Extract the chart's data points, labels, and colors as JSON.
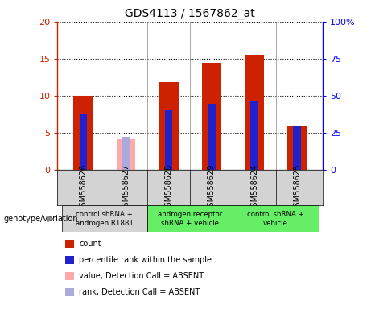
{
  "title": "GDS4113 / 1567862_at",
  "samples": [
    "GSM558626",
    "GSM558627",
    "GSM558628",
    "GSM558629",
    "GSM558624",
    "GSM558625"
  ],
  "count_values": [
    10.0,
    null,
    11.8,
    14.4,
    15.5,
    6.0
  ],
  "count_absent": [
    null,
    4.1,
    null,
    null,
    null,
    null
  ],
  "rank_values": [
    7.5,
    null,
    8.1,
    8.9,
    9.4,
    5.85
  ],
  "rank_absent": [
    null,
    4.5,
    null,
    null,
    null,
    null
  ],
  "ylim_left": [
    0,
    20
  ],
  "ylim_right": [
    0,
    100
  ],
  "yticks_left": [
    0,
    5,
    10,
    15,
    20
  ],
  "yticks_right": [
    0,
    25,
    50,
    75,
    100
  ],
  "ytick_labels_left": [
    "0",
    "5",
    "10",
    "15",
    "20"
  ],
  "ytick_labels_right": [
    "0",
    "25",
    "50",
    "75",
    "100%"
  ],
  "bar_color_red": "#cc2200",
  "bar_color_blue": "#2222cc",
  "bar_color_pink": "#ffaaaa",
  "bar_color_lightblue": "#aaaadd",
  "bar_width": 0.45,
  "rank_bar_width": 0.18,
  "header_bg": "#d3d3d3",
  "group_bg_1": "#d3d3d3",
  "group_bg_2": "#66ee66",
  "group_spans": [
    [
      0,
      1,
      "#d3d3d3",
      "control shRNA +\nandrogen R1881"
    ],
    [
      2,
      3,
      "#66ee66",
      "androgen receptor\nshRNA + vehicle"
    ],
    [
      4,
      5,
      "#66ee66",
      "control shRNA +\nvehicle"
    ]
  ],
  "legend_colors": [
    "#cc2200",
    "#2222cc",
    "#ffaaaa",
    "#aaaadd"
  ],
  "legend_labels": [
    "count",
    "percentile rank within the sample",
    "value, Detection Call = ABSENT",
    "rank, Detection Call = ABSENT"
  ]
}
